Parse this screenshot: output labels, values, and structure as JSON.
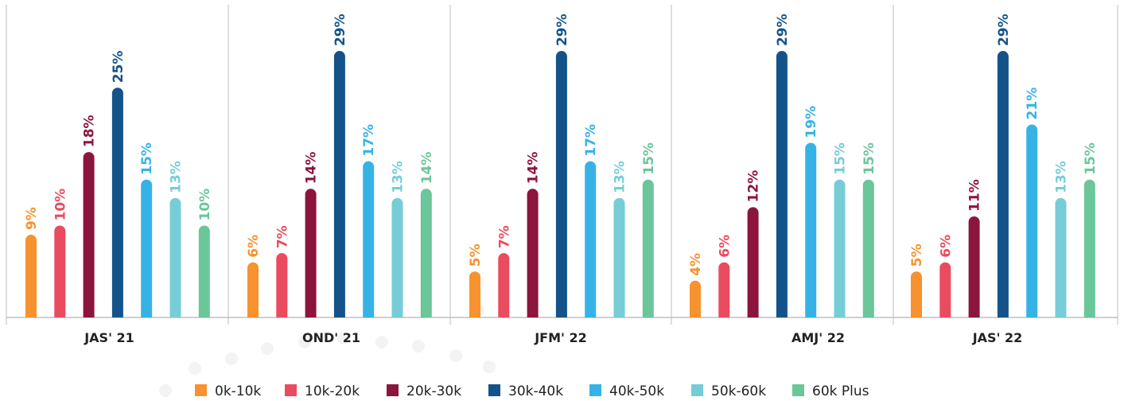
{
  "chart_data": {
    "type": "bar",
    "categories": [
      "JAS' 21",
      "OND' 21",
      "JFM' 22",
      "AMJ' 22",
      "JAS' 22"
    ],
    "series": [
      {
        "name": "0k-10k",
        "color": "#f7922e",
        "values": [
          9,
          6,
          5,
          4,
          5
        ]
      },
      {
        "name": "10k-20k",
        "color": "#ea4b5f",
        "values": [
          10,
          7,
          7,
          6,
          6
        ]
      },
      {
        "name": "20k-30k",
        "color": "#8c153d",
        "values": [
          18,
          14,
          14,
          12,
          11
        ]
      },
      {
        "name": "30k-40k",
        "color": "#14538a",
        "values": [
          25,
          29,
          29,
          29,
          29
        ]
      },
      {
        "name": "40k-50k",
        "color": "#36b3e6",
        "values": [
          15,
          17,
          17,
          19,
          21
        ]
      },
      {
        "name": "50k-60k",
        "color": "#76cdd8",
        "values": [
          13,
          13,
          13,
          15,
          13
        ]
      },
      {
        "name": "60k Plus",
        "color": "#6bc69a",
        "values": [
          10,
          14,
          15,
          15,
          15
        ]
      }
    ],
    "data_labels": [
      [
        "9%",
        "10%",
        "18%",
        "25%",
        "15%",
        "13%",
        "10%"
      ],
      [
        "6%",
        "7%",
        "14%",
        "29%",
        "17%",
        "13%",
        "14%"
      ],
      [
        "5%",
        "7%",
        "14%",
        "29%",
        "17%",
        "13%",
        "15%"
      ],
      [
        "4%",
        "6%",
        "12%",
        "29%",
        "19%",
        "15%",
        "15%"
      ],
      [
        "5%",
        "6%",
        "11%",
        "29%",
        "21%",
        "13%",
        "15%"
      ]
    ],
    "title": "",
    "xlabel": "",
    "ylabel": "",
    "ylim": [
      0,
      30
    ],
    "grid": false,
    "legend_position": "bottom"
  }
}
